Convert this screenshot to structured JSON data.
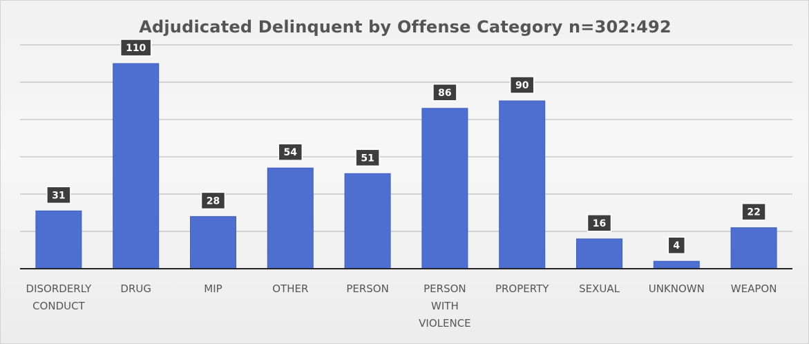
{
  "colors": {
    "bar": "#4f6fd0",
    "bar_stroke": "#3f5fc0",
    "grid": "#b0b0b0",
    "axis": "#222222",
    "label_box": "#3d3d3d",
    "label_box_stroke": "#ffffff"
  },
  "chart_data": {
    "type": "bar",
    "title": "Adjudicated Delinquent by Offense Category n=302:492",
    "xlabel": "",
    "ylabel": "",
    "categories": [
      [
        "DISORDERLY",
        "CONDUCT"
      ],
      [
        "DRUG"
      ],
      [
        "MIP"
      ],
      [
        "OTHER"
      ],
      [
        "PERSON"
      ],
      [
        "PERSON",
        "WITH",
        "VIOLENCE"
      ],
      [
        "PROPERTY"
      ],
      [
        "SEXUAL"
      ],
      [
        "UNKNOWN"
      ],
      [
        "WEAPON"
      ]
    ],
    "values": [
      31,
      110,
      28,
      54,
      51,
      86,
      90,
      16,
      4,
      22
    ],
    "data_labels": [
      "31",
      "110",
      "28",
      "54",
      "51",
      "86",
      "90",
      "16",
      "4",
      "22"
    ],
    "ylim": [
      0,
      120
    ],
    "gridlines": true,
    "legend": "none"
  }
}
